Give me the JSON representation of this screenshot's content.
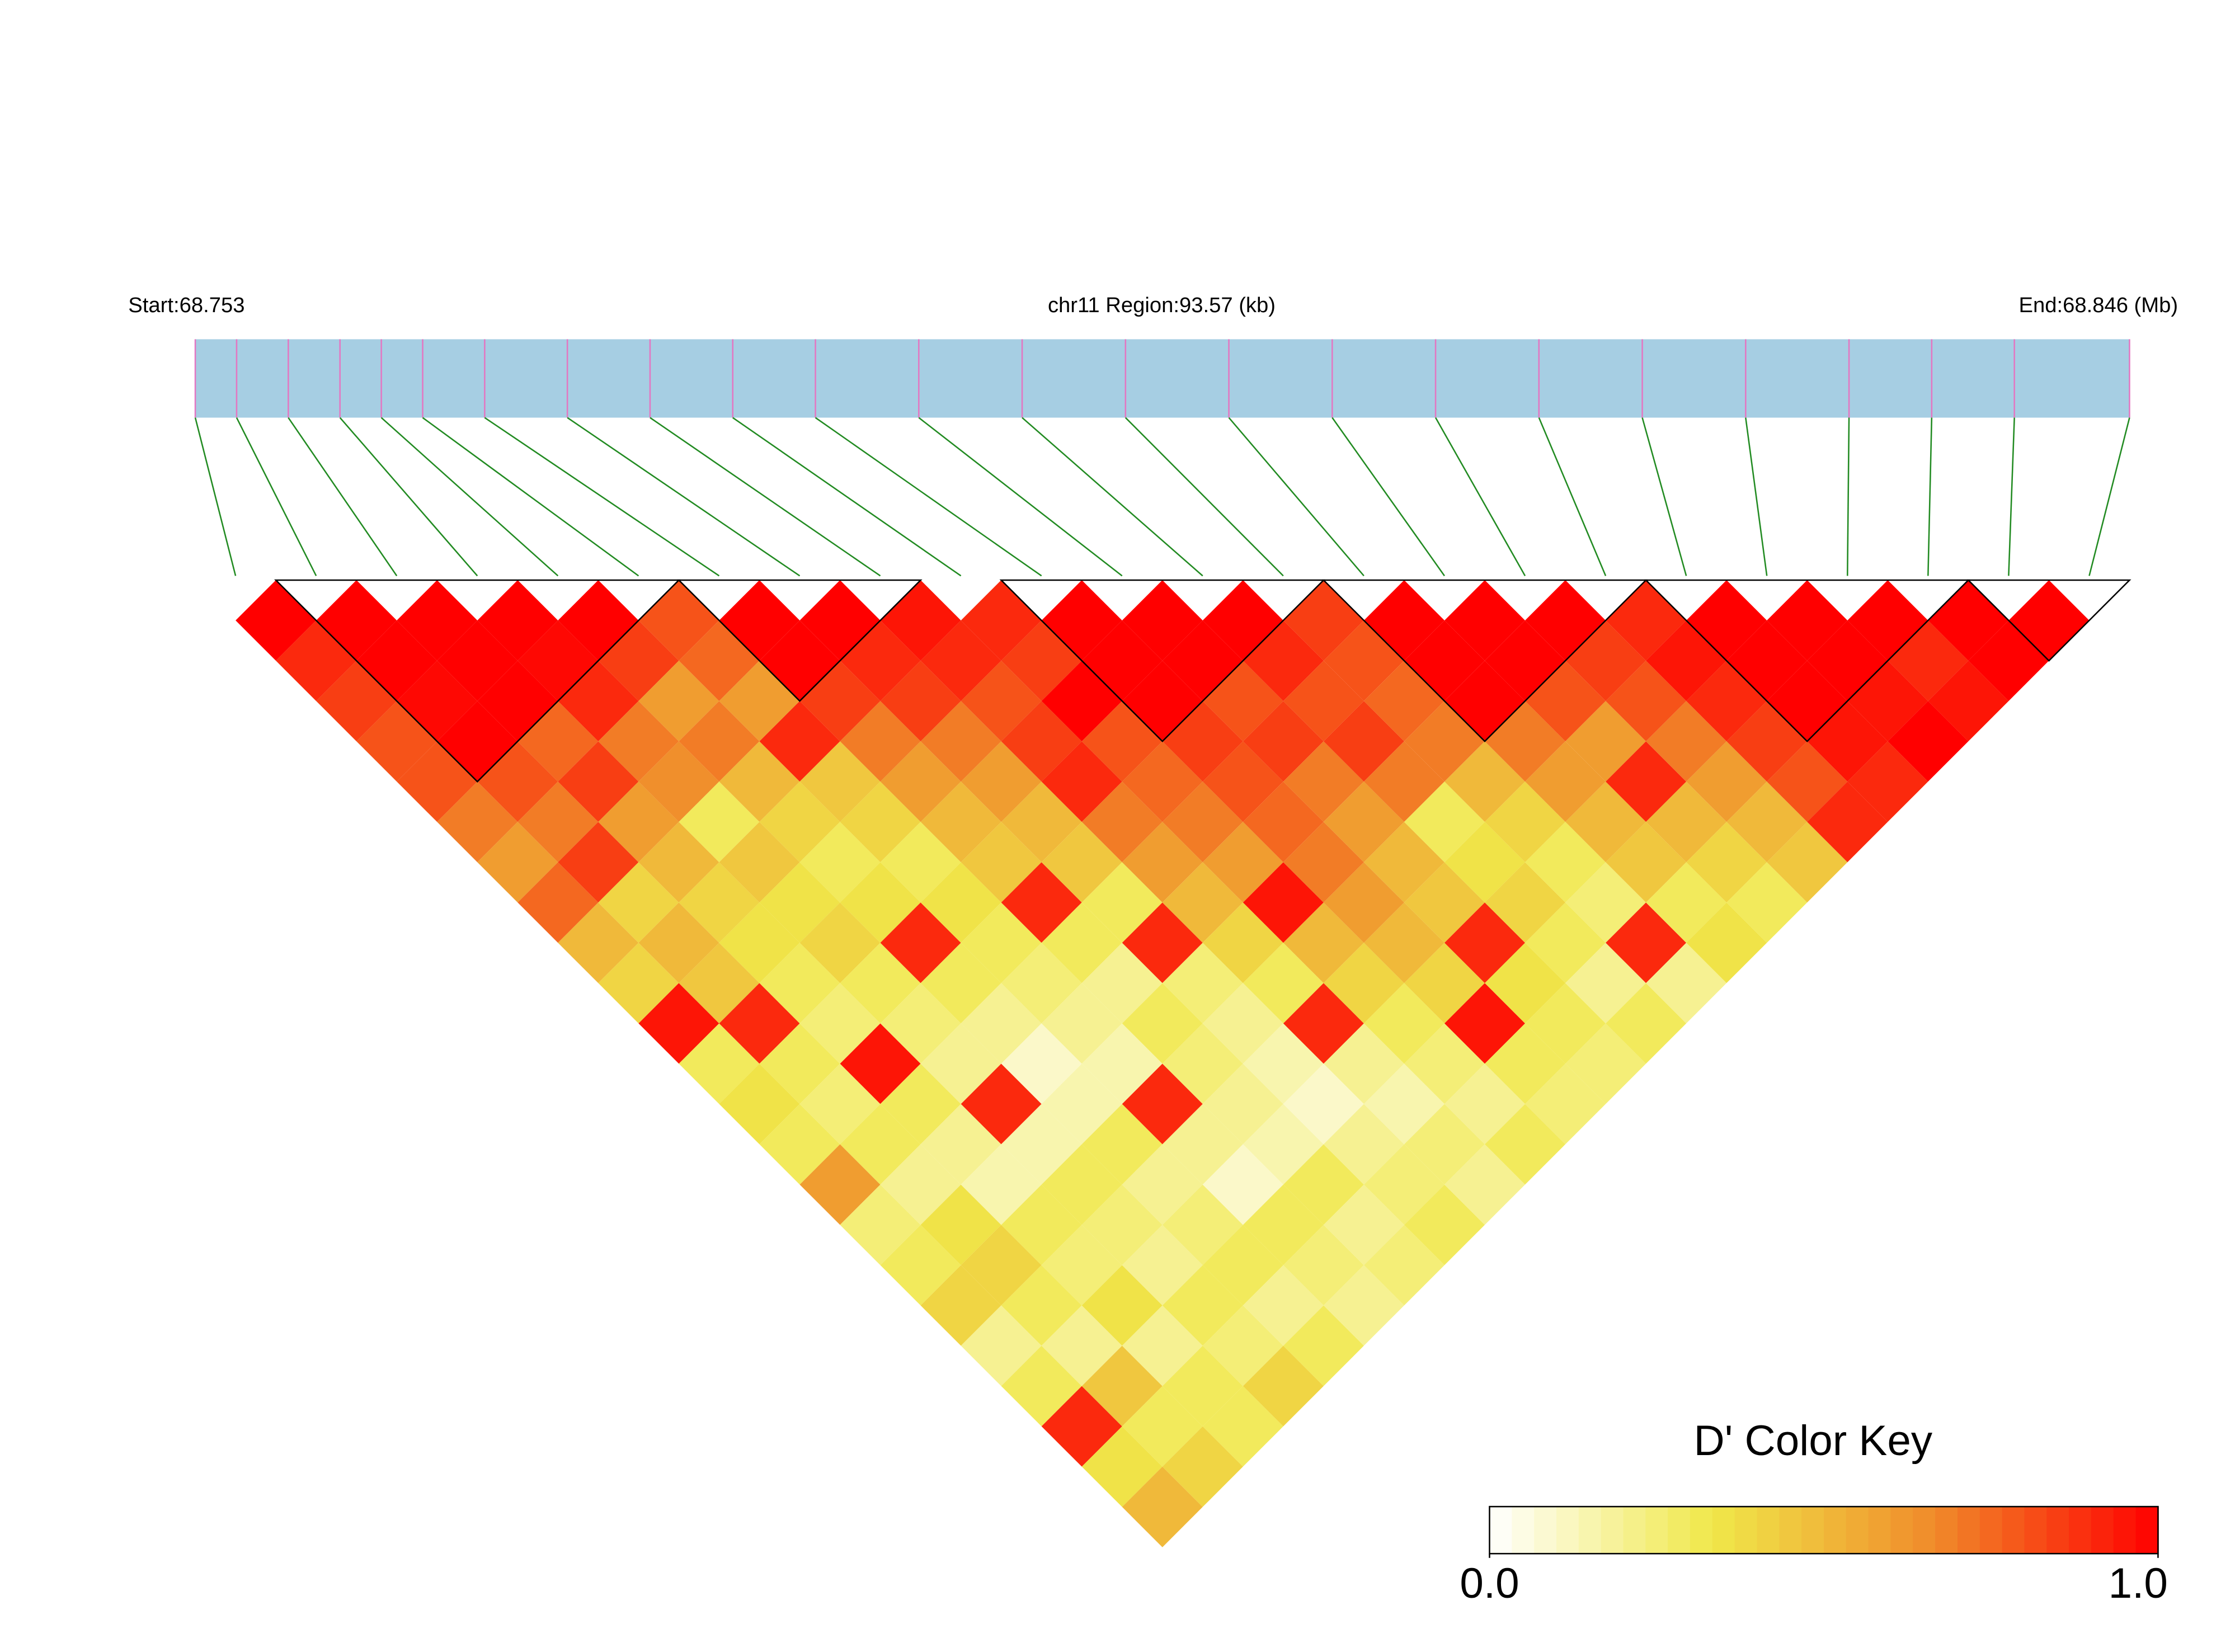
{
  "chart_data": {
    "type": "ld-heatmap",
    "start_label": "Start:68.753",
    "region_label": "chr11 Region:93.57 (kb)",
    "end_label": "End:68.846 (Mb)",
    "xlim": [
      0,
      93.57
    ],
    "snp_positions": [
      0,
      2,
      4.5,
      7,
      9,
      11,
      14,
      18,
      22,
      26,
      30,
      35,
      40,
      45,
      50,
      55,
      60,
      65,
      70,
      75,
      80,
      84,
      88,
      93.57
    ],
    "dprime": [
      [
        1,
        0.9,
        0.85,
        0.8,
        0.8,
        0.7,
        0.6,
        0.75,
        0.5,
        0.4,
        0.95,
        0.3,
        0.35,
        0.3,
        0.6,
        0.25,
        0.3,
        0.4,
        0.2,
        0.3,
        0.9,
        0.35,
        0.5
      ],
      [
        1,
        1,
        0.98,
        1,
        0.8,
        0.7,
        0.85,
        0.4,
        0.5,
        0.45,
        0.9,
        0.3,
        0.25,
        0.3,
        0.2,
        0.35,
        0.4,
        0.3,
        0.2,
        0.45,
        0.3,
        0.4
      ],
      [
        1,
        1,
        1,
        0.75,
        0.85,
        0.6,
        0.5,
        0.4,
        0.35,
        0.3,
        0.25,
        0.95,
        0.3,
        0.2,
        0.15,
        0.3,
        0.25,
        0.35,
        0.2,
        0.3,
        0.3
      ],
      [
        1,
        0.98,
        0.9,
        0.7,
        0.65,
        0.3,
        0.45,
        0.35,
        0.4,
        0.3,
        0.25,
        0.2,
        0.9,
        0.15,
        0.3,
        0.25,
        0.2,
        0.3,
        0.25,
        0.4
      ],
      [
        1,
        0.85,
        0.6,
        0.7,
        0.5,
        0.4,
        0.3,
        0.35,
        0.9,
        0.3,
        0.2,
        0.1,
        0.15,
        0.3,
        0.2,
        0.25,
        0.3,
        0.2,
        0.3
      ],
      [
        0.8,
        0.75,
        0.6,
        0.9,
        0.45,
        0.4,
        0.3,
        0.35,
        0.3,
        0.25,
        0.2,
        0.15,
        0.9,
        0.2,
        0.1,
        0.3,
        0.25,
        0.2
      ],
      [
        1,
        1,
        0.85,
        0.7,
        0.6,
        0.5,
        0.45,
        0.9,
        0.3,
        0.2,
        0.3,
        0.25,
        0.2,
        0.15,
        0.3,
        0.2,
        0.25
      ],
      [
        1,
        0.9,
        0.85,
        0.7,
        0.6,
        0.5,
        0.45,
        0.3,
        0.9,
        0.25,
        0.2,
        0.15,
        0.1,
        0.2,
        0.25,
        0.3
      ],
      [
        0.95,
        0.9,
        0.8,
        0.85,
        0.9,
        0.7,
        0.6,
        0.5,
        0.4,
        0.3,
        0.9,
        0.2,
        0.15,
        0.25,
        0.2
      ],
      [
        0.9,
        0.85,
        1,
        0.8,
        0.75,
        0.7,
        0.6,
        0.95,
        0.5,
        0.4,
        0.3,
        0.25,
        0.2,
        0.3
      ],
      [
        1,
        1,
        1,
        0.85,
        0.8,
        0.75,
        0.7,
        0.6,
        0.5,
        0.4,
        0.95,
        0.3,
        0.25
      ],
      [
        1,
        1,
        0.8,
        0.85,
        0.7,
        0.6,
        0.5,
        0.45,
        0.9,
        0.35,
        0.3,
        0.25
      ],
      [
        1,
        0.9,
        0.8,
        0.85,
        0.7,
        0.3,
        0.35,
        0.4,
        0.3,
        0.2,
        0.3
      ],
      [
        0.85,
        0.8,
        0.75,
        0.7,
        0.5,
        0.4,
        0.3,
        0.25,
        0.9,
        0.2
      ],
      [
        1,
        1,
        1,
        0.7,
        0.6,
        0.5,
        0.45,
        0.3,
        0.35
      ],
      [
        1,
        1,
        0.8,
        0.6,
        0.9,
        0.5,
        0.4,
        0.3
      ],
      [
        1,
        0.85,
        0.8,
        0.7,
        0.6,
        0.5,
        0.45
      ],
      [
        0.9,
        0.95,
        0.9,
        0.85,
        0.8,
        0.9
      ],
      [
        1,
        1,
        1,
        0.95,
        0.9
      ],
      [
        1,
        1,
        0.95,
        1
      ],
      [
        1,
        0.9,
        0.95
      ],
      [
        1,
        1
      ],
      [
        1
      ]
    ],
    "blocks": [
      [
        1,
        5
      ],
      [
        6,
        8
      ],
      [
        10,
        13
      ],
      [
        14,
        17
      ],
      [
        18,
        21
      ],
      [
        22,
        23
      ]
    ],
    "colors": [
      "#ffffff",
      "#f0e84a",
      "#f08a2a",
      "#ff0000"
    ],
    "bar_color": "#a6cee3",
    "snp_color": "#e377c2",
    "link_color": "#228b22",
    "key_title": "D' Color Key",
    "key_lim": [
      0,
      1
    ],
    "key_ticks": [
      {
        "value": 0,
        "label": "0.0"
      },
      {
        "value": 1,
        "label": "1.0"
      }
    ]
  }
}
